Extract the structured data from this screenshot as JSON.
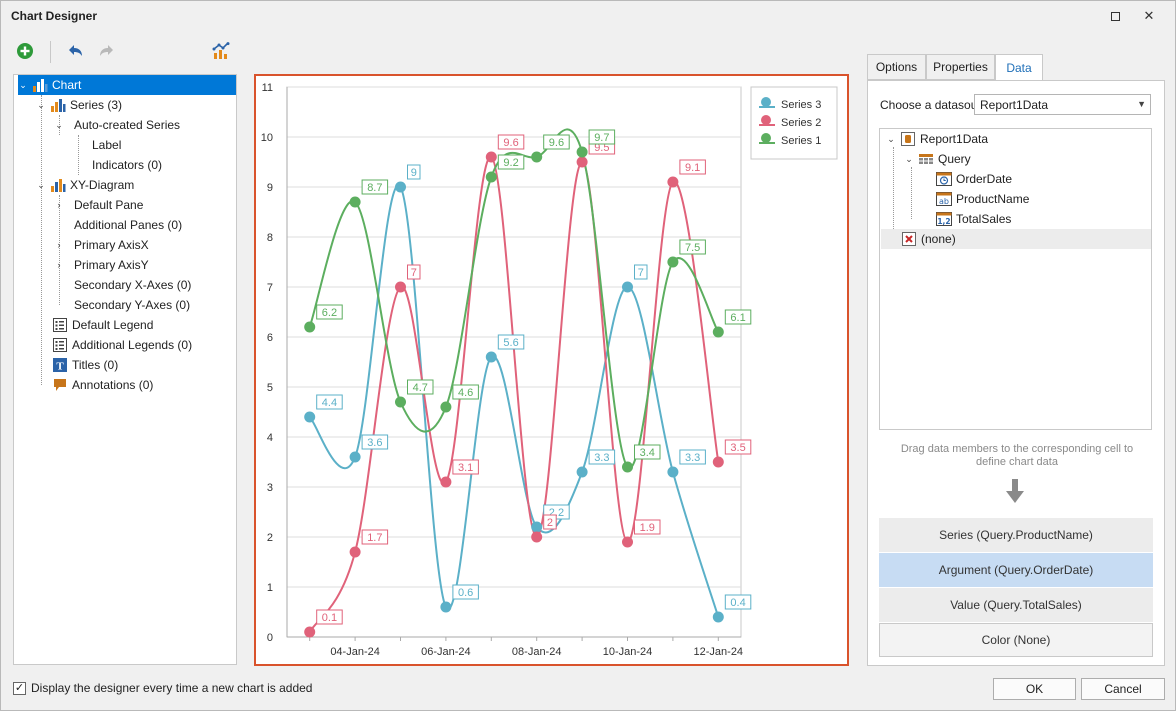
{
  "window": {
    "title": "Chart Designer"
  },
  "tree": [
    {
      "id": "chart",
      "label": "Chart",
      "icon": "chart-icon",
      "selected": true
    },
    {
      "id": "series",
      "label": "Series (3)",
      "icon": "bar-chart-icon"
    },
    {
      "id": "auto-series",
      "label": "Auto-created Series",
      "icon": ""
    },
    {
      "id": "label",
      "label": "Label",
      "icon": ""
    },
    {
      "id": "indicators",
      "label": "Indicators (0)",
      "icon": ""
    },
    {
      "id": "xy-diagram",
      "label": "XY-Diagram",
      "icon": "bar-chart-icon"
    },
    {
      "id": "default-pane",
      "label": "Default Pane",
      "icon": ""
    },
    {
      "id": "additional-panes",
      "label": "Additional Panes (0)",
      "icon": ""
    },
    {
      "id": "primary-axisx",
      "label": "Primary AxisX",
      "icon": ""
    },
    {
      "id": "primary-axisy",
      "label": "Primary AxisY",
      "icon": ""
    },
    {
      "id": "secondary-x",
      "label": "Secondary X-Axes (0)",
      "icon": ""
    },
    {
      "id": "secondary-y",
      "label": "Secondary Y-Axes (0)",
      "icon": ""
    },
    {
      "id": "default-legend",
      "label": "Default Legend",
      "icon": "legend-icon"
    },
    {
      "id": "additional-legends",
      "label": "Additional Legends (0)",
      "icon": "legend-icon"
    },
    {
      "id": "titles",
      "label": "Titles (0)",
      "icon": "title-icon"
    },
    {
      "id": "annotations",
      "label": "Annotations (0)",
      "icon": "annotation-icon"
    }
  ],
  "tabs": [
    "Options",
    "Properties",
    "Data"
  ],
  "active_tab": "Data",
  "datasource": {
    "label": "Choose a datasource:",
    "selected": "Report1Data",
    "tree": [
      {
        "label": "Report1Data",
        "icon": "database-icon"
      },
      {
        "label": "Query",
        "icon": "table-icon"
      },
      {
        "label": "OrderDate",
        "icon": "date-field-icon"
      },
      {
        "label": "ProductName",
        "icon": "text-field-icon"
      },
      {
        "label": "TotalSales",
        "icon": "number-field-icon"
      },
      {
        "label": "(none)",
        "icon": "none-icon"
      }
    ]
  },
  "hint": "Drag data members to the corresponding cell to define chart data",
  "cells": {
    "series": "Series (Query.ProductName)",
    "argument": "Argument (Query.OrderDate)",
    "value": "Value (Query.TotalSales)",
    "color": "Color (None)"
  },
  "footer": {
    "checkbox_label": "Display the designer every time a new chart is added",
    "ok": "OK",
    "cancel": "Cancel"
  },
  "chart_data": {
    "type": "line",
    "smooth": true,
    "x": [
      "03-Jan-24",
      "04-Jan-24",
      "05-Jan-24",
      "06-Jan-24",
      "07-Jan-24",
      "08-Jan-24",
      "09-Jan-24",
      "10-Jan-24",
      "11-Jan-24",
      "12-Jan-24"
    ],
    "x_tick_labels": [
      "04-Jan-24",
      "06-Jan-24",
      "08-Jan-24",
      "10-Jan-24",
      "12-Jan-24"
    ],
    "ylim": [
      0,
      11
    ],
    "y_ticks": [
      0,
      1,
      2,
      3,
      4,
      5,
      6,
      7,
      8,
      9,
      10,
      11
    ],
    "grid": true,
    "legend": "top-right",
    "series": [
      {
        "name": "Series 3",
        "color": "#5bb0c8",
        "values": [
          4.4,
          3.6,
          9,
          0.6,
          5.6,
          2.2,
          3.3,
          7,
          3.3,
          0.4
        ]
      },
      {
        "name": "Series 2",
        "color": "#e0627a",
        "values": [
          0.1,
          1.7,
          7,
          3.1,
          9.6,
          2,
          9.5,
          1.9,
          9.1,
          3.5
        ]
      },
      {
        "name": "Series 1",
        "color": "#5cae5f",
        "values": [
          6.2,
          8.7,
          4.7,
          4.6,
          9.2,
          9.6,
          9.7,
          3.4,
          7.5,
          6.1
        ]
      }
    ]
  }
}
